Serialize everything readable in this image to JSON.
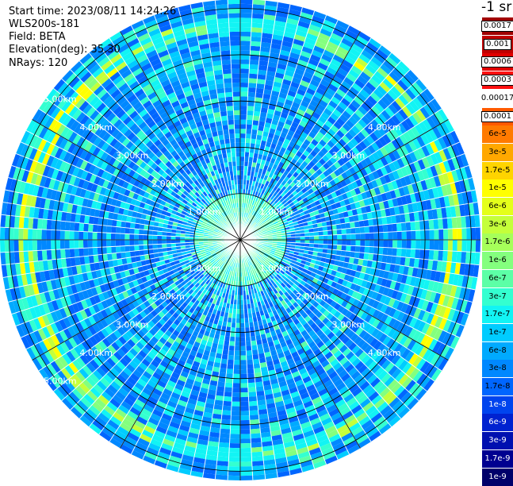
{
  "info": {
    "start_time": "Start time: 2023/08/11 14:24:26",
    "instrument": "WLS200s-181",
    "field": "Field: BETA",
    "elevation": "Elevation(deg): 35.30",
    "nrays": "NRays: 120"
  },
  "colorbar": {
    "title": "-1 sr",
    "levels": [
      {
        "label": "0.0017",
        "color": "#a00000",
        "style": "boxed"
      },
      {
        "label": "0.001",
        "color": "#c00000",
        "style": "boxed"
      },
      {
        "label": "0.0006",
        "color": "#e00000",
        "style": "boxed"
      },
      {
        "label": "0.0003",
        "color": "#ff1010",
        "style": "boxed"
      },
      {
        "label": "0.00017",
        "color": "#ffffff",
        "style": "plain"
      },
      {
        "label": "0.0001",
        "color": "#ff5a00",
        "style": "boxed"
      },
      {
        "label": "6e-5",
        "color": "#ff7a00",
        "style": "plain"
      },
      {
        "label": "3e-5",
        "color": "#ffa800",
        "style": "plain"
      },
      {
        "label": "1.7e-5",
        "color": "#ffd400",
        "style": "plain"
      },
      {
        "label": "1e-5",
        "color": "#ffff00",
        "style": "plain"
      },
      {
        "label": "6e-6",
        "color": "#e4ff1a",
        "style": "plain"
      },
      {
        "label": "3e-6",
        "color": "#c4ff3a",
        "style": "plain"
      },
      {
        "label": "1.7e-6",
        "color": "#a6ff5a",
        "style": "plain"
      },
      {
        "label": "1e-6",
        "color": "#84ff7e",
        "style": "plain"
      },
      {
        "label": "6e-7",
        "color": "#5cffa6",
        "style": "plain"
      },
      {
        "label": "3e-7",
        "color": "#34ffd0",
        "style": "plain"
      },
      {
        "label": "1.7e-7",
        "color": "#12f4f4",
        "style": "plain"
      },
      {
        "label": "1e-7",
        "color": "#00ccff",
        "style": "plain"
      },
      {
        "label": "6e-8",
        "color": "#00aaff",
        "style": "plain"
      },
      {
        "label": "3e-8",
        "color": "#0088ff",
        "style": "plain"
      },
      {
        "label": "1.7e-8",
        "color": "#0066ff",
        "style": "plain"
      },
      {
        "label": "1e-8",
        "color": "#0044ee",
        "style": "dark"
      },
      {
        "label": "6e-9",
        "color": "#0022d0",
        "style": "dark"
      },
      {
        "label": "3e-9",
        "color": "#0010b0",
        "style": "dark"
      },
      {
        "label": "1.7e-9",
        "color": "#000090",
        "style": "dark"
      },
      {
        "label": "1e-9",
        "color": "#00006a",
        "style": "dark"
      }
    ]
  },
  "ppi": {
    "rings_km": [
      1,
      2,
      3,
      4,
      5
    ],
    "max_range_km": 5.2,
    "range_labels": [
      "1.00km",
      "2.00km",
      "3.00km",
      "4.00km",
      "5.00km"
    ],
    "nrays": 120,
    "aerosol_band_km": [
      4.5,
      4.85
    ],
    "gridline_color": "#000000",
    "ray_gap_color": "#ffffff"
  }
}
